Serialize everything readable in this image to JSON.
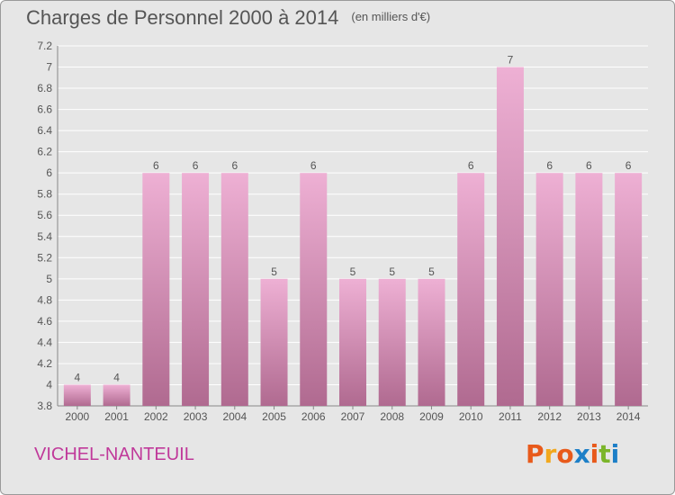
{
  "header": {
    "title": "Charges de Personnel 2000 à 2014",
    "unit": "(en milliers d'€)"
  },
  "footer": {
    "commune": "VICHEL-NANTEUIL",
    "logo": "Proxiti",
    "logo_colors": [
      "#e85a1b",
      "#f2a81d",
      "#e85a1b",
      "#1d7fc7",
      "#e85a1b",
      "#7bb52a",
      "#1d7fc7"
    ]
  },
  "colors": {
    "background": "#e6e6e6",
    "plot_background": "#e6e6e6",
    "bar_top": "#eeb0d4",
    "bar_bottom": "#b06a90",
    "axis_text": "#555555",
    "commune": "#c0399a"
  },
  "chart_data": {
    "type": "bar",
    "title": "Charges de Personnel 2000 à 2014",
    "xlabel": "",
    "ylabel": "",
    "categories": [
      "2000",
      "2001",
      "2002",
      "2003",
      "2004",
      "2005",
      "2006",
      "2007",
      "2008",
      "2009",
      "2010",
      "2011",
      "2012",
      "2013",
      "2014"
    ],
    "values": [
      4,
      4,
      6,
      6,
      6,
      5,
      6,
      5,
      5,
      5,
      6,
      7,
      6,
      6,
      6
    ],
    "data_labels": [
      "4",
      "4",
      "6",
      "6",
      "6",
      "5",
      "6",
      "5",
      "5",
      "5",
      "6",
      "7",
      "6",
      "6",
      "6"
    ],
    "ylim": [
      3.8,
      7.2
    ],
    "yticks": [
      3.8,
      4,
      4.2,
      4.4,
      4.6,
      4.8,
      5,
      5.2,
      5.4,
      5.6,
      5.8,
      6,
      6.2,
      6.4,
      6.6,
      6.8,
      7,
      7.2
    ],
    "ytick_labels": [
      "3.8",
      "4",
      "4.2",
      "4.4",
      "4.6",
      "4.8",
      "5",
      "5.2",
      "5.4",
      "5.6",
      "5.8",
      "6",
      "6.2",
      "6.4",
      "6.6",
      "6.8",
      "7",
      "7.2"
    ],
    "grid": true,
    "legend": "none"
  }
}
